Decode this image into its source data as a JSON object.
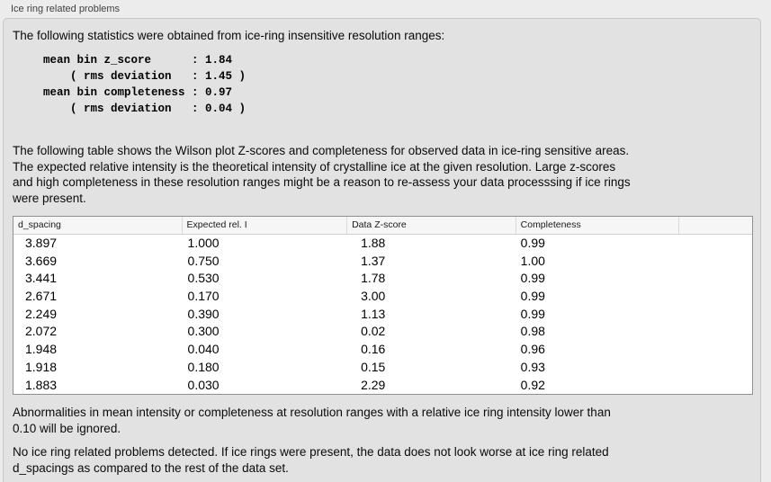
{
  "groupbox": {
    "title": "Ice ring related problems"
  },
  "stats": {
    "intro": "The following statistics were obtained from ice-ring insensitive resolution ranges:",
    "block": "mean bin z_score      : 1.84\n    ( rms deviation   : 1.45 )\nmean bin completeness : 0.97\n    ( rms deviation   : 0.04 )",
    "mean_bin_z_score": "1.84",
    "z_score_rms_deviation": "1.45",
    "mean_bin_completeness": "0.97",
    "completeness_rms_deviation": "0.04"
  },
  "table_intro": "The following table shows the Wilson plot Z-scores and completeness for observed data in ice-ring sensitive areas.\nThe expected relative intensity is the theoretical intensity of crystalline ice at the given resolution. Large z-scores\nand high completeness in these resolution ranges might be a reason to re-assess your data processsing if ice rings\nwere present.",
  "table": {
    "headers": [
      "d_spacing",
      "Expected rel. I",
      "Data Z-score",
      "Completeness",
      ""
    ],
    "rows": [
      [
        "3.897",
        "1.000",
        "1.88",
        "0.99"
      ],
      [
        "3.669",
        "0.750",
        "1.37",
        "1.00"
      ],
      [
        "3.441",
        "0.530",
        "1.78",
        "0.99"
      ],
      [
        "2.671",
        "0.170",
        "3.00",
        "0.99"
      ],
      [
        "2.249",
        "0.390",
        "1.13",
        "0.99"
      ],
      [
        "2.072",
        "0.300",
        "0.02",
        "0.98"
      ],
      [
        "1.948",
        "0.040",
        "0.16",
        "0.96"
      ],
      [
        "1.918",
        "0.180",
        "0.15",
        "0.93"
      ],
      [
        "1.883",
        "0.030",
        "2.29",
        "0.92"
      ]
    ]
  },
  "footer": {
    "note1": "Abnormalities in mean intensity or completeness at resolution ranges with a relative ice ring intensity lower than\n0.10 will be ignored.",
    "note2": "No ice ring related problems detected. If ice rings were present, the data does not look worse at ice ring related\nd_spacings as compared to the rest of the data set."
  }
}
